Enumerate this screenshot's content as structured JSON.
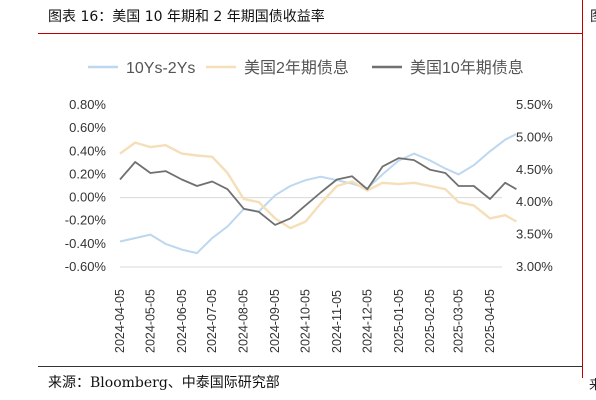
{
  "figure": {
    "title": "图表 16：美国 10 年期和 2 年期国债收益率",
    "source": "来源：Bloomberg、中泰国际研究部",
    "cut_right_glyph": "图",
    "cut_bottom_glyph": "来"
  },
  "colors": {
    "spread": "#bdd7ee",
    "us2y": "#f5dfb8",
    "us10y": "#707070",
    "rule_red": "#c00000",
    "axis": "#d9d9d9"
  },
  "chart_data": {
    "type": "line",
    "title": "",
    "legend_position": "top",
    "grid": false,
    "x_ticks": [
      "2024-04-05",
      "2024-05-05",
      "2024-06-05",
      "2024-07-05",
      "2024-08-05",
      "2024-09-05",
      "2024-10-05",
      "2024-11-05",
      "2024-12-05",
      "2025-01-05",
      "2025-02-05",
      "2025-03-05",
      "2025-04-05"
    ],
    "y_left": {
      "min": -0.6,
      "max": 0.8,
      "ticks": [
        "0.80%",
        "0.60%",
        "0.40%",
        "0.20%",
        "0.00%",
        "-0.20%",
        "-0.40%",
        "-0.60%"
      ]
    },
    "y_right": {
      "min": 3.0,
      "max": 5.5,
      "ticks": [
        "5.50%",
        "5.00%",
        "4.50%",
        "4.00%",
        "3.50%",
        "3.00%"
      ]
    },
    "series": [
      {
        "name": "10Ys-2Ys",
        "axis": "left",
        "x": [
          "2024-04-05",
          "2024-04-20",
          "2024-05-05",
          "2024-05-20",
          "2024-06-05",
          "2024-06-20",
          "2024-07-05",
          "2024-07-20",
          "2024-08-05",
          "2024-08-20",
          "2024-09-05",
          "2024-09-20",
          "2024-10-05",
          "2024-10-20",
          "2024-11-05",
          "2024-11-20",
          "2024-12-05",
          "2024-12-20",
          "2025-01-05",
          "2025-01-20",
          "2025-02-05",
          "2025-02-20",
          "2025-03-05",
          "2025-03-20",
          "2025-04-05",
          "2025-04-20",
          "2025-05-01"
        ],
        "values": [
          -0.38,
          -0.35,
          -0.32,
          -0.4,
          -0.45,
          -0.48,
          -0.35,
          -0.25,
          -0.1,
          -0.12,
          0.02,
          0.1,
          0.15,
          0.18,
          0.15,
          0.12,
          0.08,
          0.2,
          0.32,
          0.38,
          0.32,
          0.25,
          0.2,
          0.28,
          0.4,
          0.5,
          0.55
        ]
      },
      {
        "name": "美国2年期债息",
        "axis": "right",
        "x": [
          "2024-04-05",
          "2024-04-20",
          "2024-05-05",
          "2024-05-20",
          "2024-06-05",
          "2024-06-20",
          "2024-07-05",
          "2024-07-20",
          "2024-08-05",
          "2024-08-20",
          "2024-09-05",
          "2024-09-20",
          "2024-10-05",
          "2024-10-20",
          "2024-11-05",
          "2024-11-20",
          "2024-12-05",
          "2024-12-20",
          "2025-01-05",
          "2025-01-20",
          "2025-02-05",
          "2025-02-20",
          "2025-03-05",
          "2025-03-20",
          "2025-04-05",
          "2025-04-20",
          "2025-05-01"
        ],
        "values": [
          4.75,
          4.92,
          4.85,
          4.88,
          4.75,
          4.72,
          4.7,
          4.45,
          4.05,
          4.0,
          3.75,
          3.6,
          3.7,
          3.98,
          4.25,
          4.32,
          4.18,
          4.3,
          4.28,
          4.3,
          4.25,
          4.2,
          4.0,
          3.95,
          3.75,
          3.8,
          3.7
        ]
      },
      {
        "name": "美国10年期债息",
        "axis": "right",
        "x": [
          "2024-04-05",
          "2024-04-20",
          "2024-05-05",
          "2024-05-20",
          "2024-06-05",
          "2024-06-20",
          "2024-07-05",
          "2024-07-20",
          "2024-08-05",
          "2024-08-20",
          "2024-09-05",
          "2024-09-20",
          "2024-10-05",
          "2024-10-20",
          "2024-11-05",
          "2024-11-20",
          "2024-12-05",
          "2024-12-20",
          "2025-01-05",
          "2025-01-20",
          "2025-02-05",
          "2025-02-20",
          "2025-03-05",
          "2025-03-20",
          "2025-04-05",
          "2025-04-20",
          "2025-05-01"
        ],
        "values": [
          4.35,
          4.62,
          4.45,
          4.48,
          4.35,
          4.25,
          4.32,
          4.2,
          3.9,
          3.85,
          3.65,
          3.75,
          3.95,
          4.15,
          4.35,
          4.4,
          4.2,
          4.55,
          4.68,
          4.65,
          4.5,
          4.45,
          4.25,
          4.25,
          4.05,
          4.3,
          4.2
        ]
      }
    ]
  }
}
